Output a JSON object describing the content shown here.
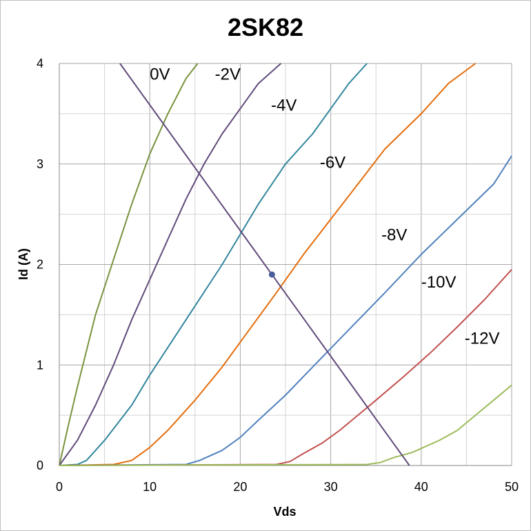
{
  "chart_data": {
    "type": "line",
    "title": "2SK82",
    "xlabel": "Vds",
    "ylabel": "Id (A)",
    "xlim": [
      0,
      50
    ],
    "ylim": [
      0,
      4
    ],
    "x_ticks": [
      "0",
      "10",
      "20",
      "30",
      "40",
      "50"
    ],
    "y_ticks": [
      "0",
      "1",
      "2",
      "3",
      "4"
    ],
    "grid": true,
    "series": [
      {
        "name": "0V",
        "color": "#77933c",
        "label_at": [
          10,
          3.84
        ],
        "points": [
          [
            0,
            0
          ],
          [
            1,
            0.4
          ],
          [
            2,
            0.78
          ],
          [
            4,
            1.5
          ],
          [
            6,
            2.05
          ],
          [
            8,
            2.6
          ],
          [
            10,
            3.1
          ],
          [
            12,
            3.5
          ],
          [
            14,
            3.85
          ],
          [
            15.3,
            4.0
          ]
        ]
      },
      {
        "name": "-2V",
        "color": "#604a7b",
        "label_at": [
          17.2,
          3.84
        ],
        "points": [
          [
            0,
            0
          ],
          [
            2,
            0.25
          ],
          [
            4,
            0.6
          ],
          [
            6,
            1.0
          ],
          [
            8,
            1.45
          ],
          [
            10,
            1.85
          ],
          [
            12,
            2.25
          ],
          [
            14,
            2.65
          ],
          [
            16,
            3.0
          ],
          [
            18,
            3.3
          ],
          [
            20,
            3.55
          ],
          [
            22,
            3.8
          ],
          [
            24.5,
            4.0
          ]
        ]
      },
      {
        "name": "-4V",
        "color": "#31859c",
        "label_at": [
          23.4,
          3.53
        ],
        "points": [
          [
            0,
            0
          ],
          [
            2,
            0.01
          ],
          [
            3,
            0.05
          ],
          [
            5,
            0.25
          ],
          [
            8,
            0.6
          ],
          [
            10,
            0.9
          ],
          [
            14,
            1.45
          ],
          [
            18,
            2.0
          ],
          [
            22,
            2.6
          ],
          [
            25,
            3.0
          ],
          [
            28,
            3.3
          ],
          [
            30,
            3.55
          ],
          [
            32,
            3.8
          ],
          [
            34,
            4.0
          ]
        ]
      },
      {
        "name": "-6V",
        "color": "#e46c0a",
        "label_at": [
          28.8,
          2.96
        ],
        "points": [
          [
            0,
            0
          ],
          [
            6,
            0.01
          ],
          [
            8,
            0.05
          ],
          [
            10,
            0.18
          ],
          [
            12,
            0.35
          ],
          [
            15,
            0.65
          ],
          [
            18,
            0.98
          ],
          [
            21,
            1.35
          ],
          [
            24,
            1.72
          ],
          [
            27,
            2.1
          ],
          [
            30,
            2.45
          ],
          [
            33,
            2.8
          ],
          [
            36,
            3.15
          ],
          [
            40,
            3.5
          ],
          [
            43,
            3.8
          ],
          [
            46,
            4.0
          ]
        ]
      },
      {
        "name": "-8V",
        "color": "#4f81bd",
        "label_at": [
          35.6,
          2.24
        ],
        "points": [
          [
            0,
            0
          ],
          [
            14,
            0.01
          ],
          [
            15.5,
            0.05
          ],
          [
            18,
            0.15
          ],
          [
            20,
            0.28
          ],
          [
            22,
            0.45
          ],
          [
            25,
            0.7
          ],
          [
            28,
            0.98
          ],
          [
            32,
            1.35
          ],
          [
            36,
            1.72
          ],
          [
            40,
            2.1
          ],
          [
            44,
            2.45
          ],
          [
            48,
            2.8
          ],
          [
            50,
            3.08
          ]
        ]
      },
      {
        "name": "-10V",
        "color": "#c0504d",
        "label_at": [
          40.0,
          1.77
        ],
        "points": [
          [
            0,
            0
          ],
          [
            24,
            0.01
          ],
          [
            25.5,
            0.04
          ],
          [
            27,
            0.12
          ],
          [
            29,
            0.22
          ],
          [
            31,
            0.35
          ],
          [
            33,
            0.5
          ],
          [
            35,
            0.65
          ],
          [
            38,
            0.88
          ],
          [
            41,
            1.12
          ],
          [
            44,
            1.38
          ],
          [
            47,
            1.65
          ],
          [
            50,
            1.95
          ]
        ]
      },
      {
        "name": "-12V",
        "color": "#9bbb59",
        "label_at": [
          44.8,
          1.21
        ],
        "points": [
          [
            0,
            0
          ],
          [
            34,
            0.01
          ],
          [
            35.5,
            0.03
          ],
          [
            37,
            0.08
          ],
          [
            39,
            0.13
          ],
          [
            42,
            0.25
          ],
          [
            44,
            0.35
          ],
          [
            46,
            0.5
          ],
          [
            48,
            0.65
          ],
          [
            50,
            0.8
          ]
        ]
      }
    ],
    "load_line": {
      "color": "#604a7b",
      "points": [
        [
          6.7,
          4.0
        ],
        [
          23.5,
          1.9
        ],
        [
          38.7,
          0.0
        ]
      ]
    },
    "operating_point": {
      "x": 23.5,
      "y": 1.9,
      "color": "#4a5e9c"
    }
  }
}
